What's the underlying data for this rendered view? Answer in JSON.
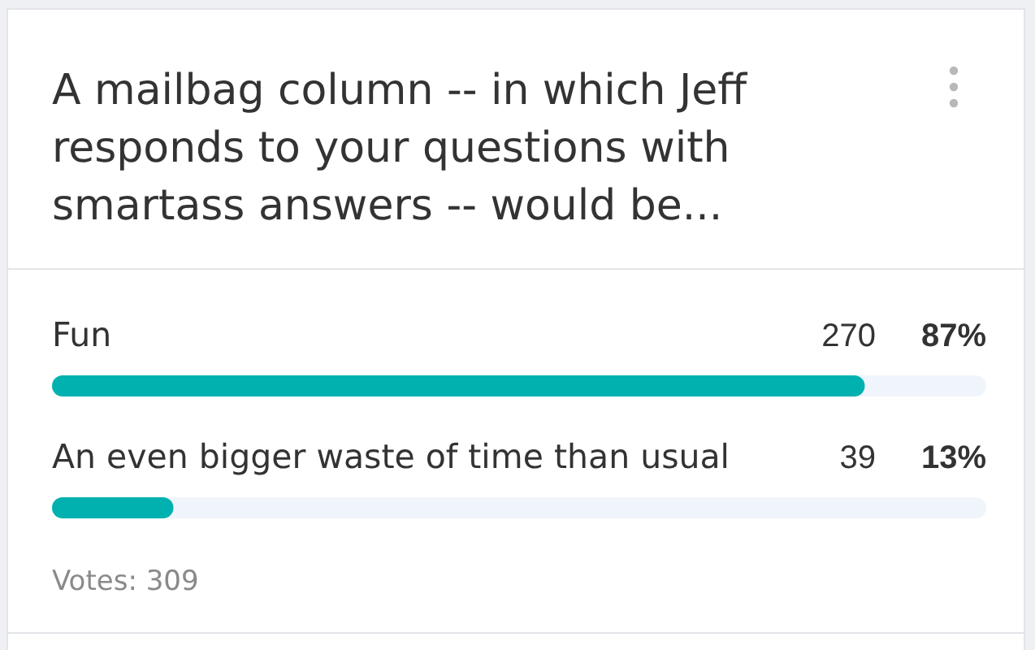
{
  "chart_data": {
    "type": "bar",
    "orientation": "horizontal",
    "title": "A mailbag column -- in which Jeff responds to your questions with smartass answers -- would be...",
    "categories": [
      "Fun",
      "An even bigger waste of time than usual"
    ],
    "values": [
      87,
      13
    ],
    "value_labels": [
      "87%",
      "13%"
    ],
    "color": "#00b1b0",
    "xlim": [
      0,
      100
    ],
    "tick_labels": "y",
    "annotations": [
      "270",
      "39",
      "Votes: 309"
    ]
  }
}
